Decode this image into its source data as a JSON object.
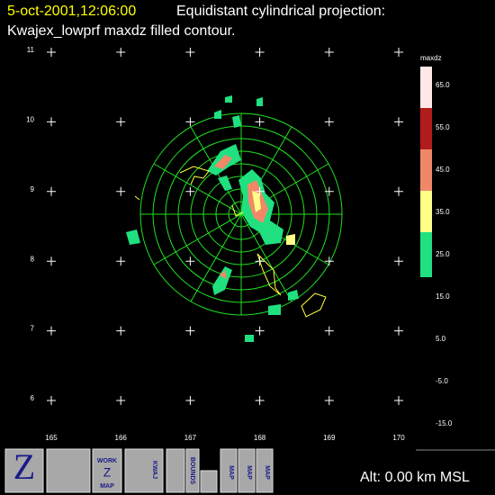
{
  "header": {
    "timestamp": "5-oct-2001,12:06:00",
    "projection": "Equidistant cylindrical projection:",
    "subtitle": "Kwajex_lowprf maxdz filled contour."
  },
  "map": {
    "lat_labels": [
      "11",
      "10",
      "9",
      "8",
      "7",
      "6"
    ],
    "lon_labels": [
      "165",
      "166",
      "167",
      "168",
      "169",
      "170"
    ]
  },
  "colorbar": {
    "title": "maxdz",
    "labels": [
      "65.0",
      "55.0",
      "45.0",
      "35.0",
      "25.0",
      "15.0",
      "5.0",
      "-5.0",
      "-15.0"
    ],
    "colors": [
      "#ffe8e8",
      "#b01c1c",
      "#f08868",
      "#ffff88",
      "#20e080"
    ]
  },
  "toolbar": {
    "zoom": "Z",
    "work_map": [
      "WORK",
      "Z",
      "MAP"
    ],
    "site": "KWAJ",
    "bounds": "BOUNDS",
    "map": "MAP"
  },
  "status": "Alt: 0.00 km MSL"
}
